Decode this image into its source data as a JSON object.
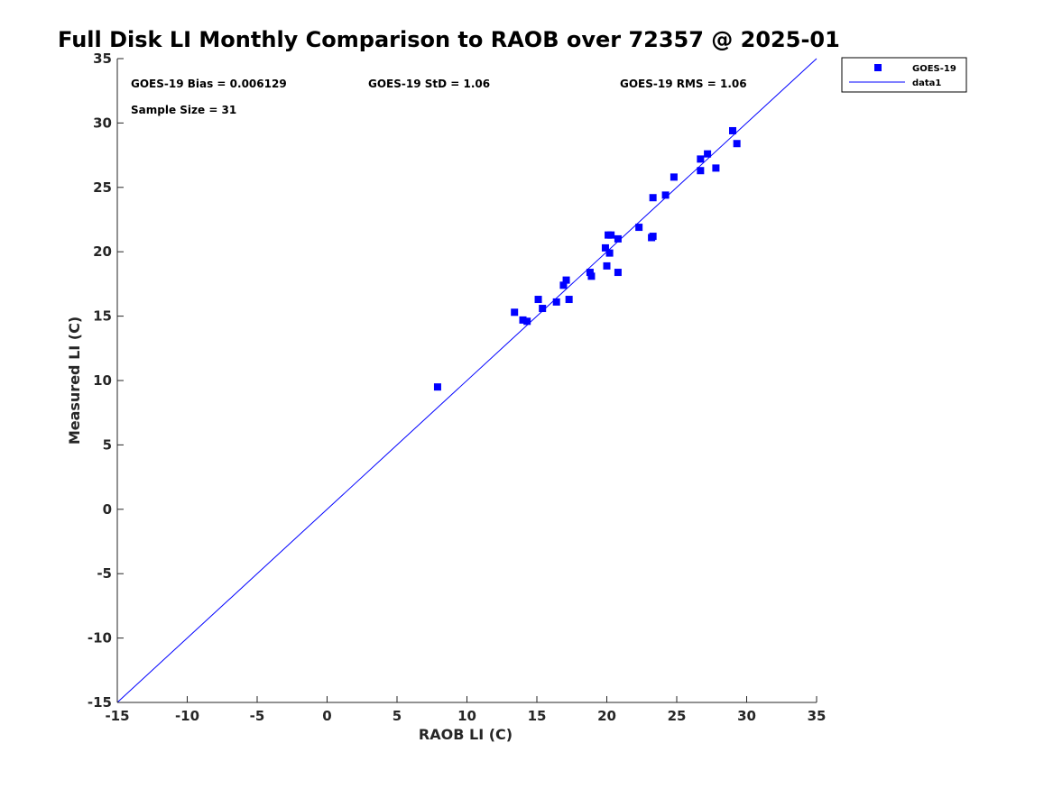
{
  "chart_data": {
    "type": "scatter",
    "title": "Full Disk LI Monthly Comparison to RAOB over 72357 @ 2025-01",
    "xlabel": "RAOB LI (C)",
    "ylabel": "Measured LI (C)",
    "xlim": [
      -15,
      35
    ],
    "ylim": [
      -15,
      35
    ],
    "xticks": [
      "-15",
      "-10",
      "-5",
      "0",
      "5",
      "10",
      "15",
      "20",
      "25",
      "30",
      "35"
    ],
    "yticks": [
      "-15",
      "-10",
      "-5",
      "0",
      "5",
      "10",
      "15",
      "20",
      "25",
      "30",
      "35"
    ],
    "grid": false,
    "legend_position": "top-right outside",
    "annotations": {
      "bias": "GOES-19 Bias = 0.006129",
      "std": "GOES-19 StD = 1.06",
      "rms": "GOES-19 RMS = 1.06",
      "sample": "Sample Size = 31"
    },
    "series": [
      {
        "name": "GOES-19",
        "kind": "scatter",
        "marker": "square",
        "color": "#0000ff",
        "points": [
          [
            7.9,
            9.5
          ],
          [
            13.4,
            15.3
          ],
          [
            14.0,
            14.7
          ],
          [
            14.3,
            14.6
          ],
          [
            15.1,
            16.3
          ],
          [
            15.4,
            15.6
          ],
          [
            16.4,
            16.1
          ],
          [
            16.9,
            17.4
          ],
          [
            17.1,
            17.8
          ],
          [
            17.3,
            16.3
          ],
          [
            18.8,
            18.4
          ],
          [
            18.9,
            18.1
          ],
          [
            19.9,
            20.3
          ],
          [
            20.0,
            18.9
          ],
          [
            20.1,
            21.3
          ],
          [
            20.2,
            19.9
          ],
          [
            20.3,
            21.3
          ],
          [
            20.8,
            21.0
          ],
          [
            20.8,
            18.4
          ],
          [
            22.3,
            21.9
          ],
          [
            23.2,
            21.1
          ],
          [
            23.3,
            21.2
          ],
          [
            23.3,
            24.2
          ],
          [
            24.2,
            24.4
          ],
          [
            24.8,
            25.8
          ],
          [
            26.7,
            27.2
          ],
          [
            26.7,
            26.3
          ],
          [
            27.2,
            27.6
          ],
          [
            27.8,
            26.5
          ],
          [
            29.0,
            29.4
          ],
          [
            29.3,
            28.4
          ]
        ]
      },
      {
        "name": "data1",
        "kind": "line",
        "color": "#0000ff",
        "points": [
          [
            -15,
            -15
          ],
          [
            35,
            35
          ]
        ]
      }
    ]
  }
}
